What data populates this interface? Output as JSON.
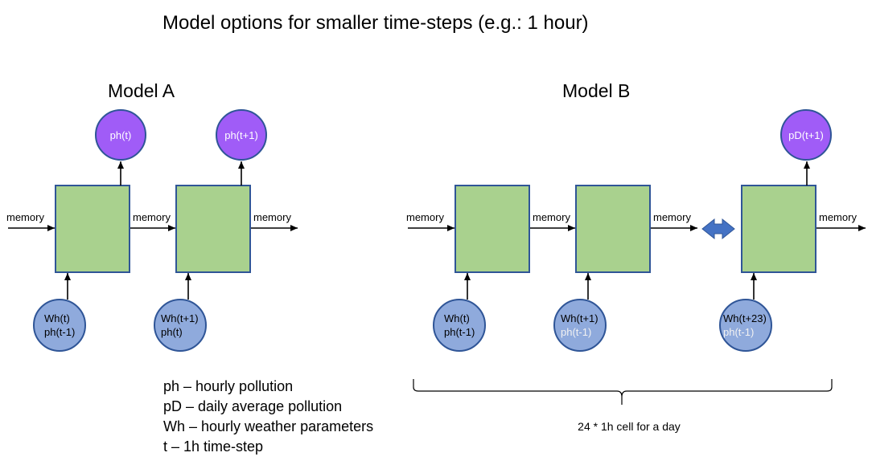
{
  "title": "Model options for smaller time-steps (e.g.: 1 hour)",
  "colors": {
    "cell_fill": "#a9d18e",
    "cell_stroke": "#2f5597",
    "output_fill": "#a05cf7",
    "input_fill": "#8faadc",
    "node_stroke": "#2f5597",
    "arrow": "#000000",
    "double_arrow": "#4472c4",
    "muted_text": "#f2f2f2"
  },
  "model_a": {
    "title": "Model A",
    "outputs": [
      "ph(t)",
      "ph(t+1)"
    ],
    "inputs": [
      {
        "line1": "Wh(t)",
        "line2": "ph(t-1)"
      },
      {
        "line1": "Wh(t+1)",
        "line2": "ph(t)"
      }
    ],
    "memory_labels": [
      "memory",
      "memory",
      "memory"
    ]
  },
  "model_b": {
    "title": "Model B",
    "output": "pD(t+1)",
    "inputs": [
      {
        "line1": "Wh(t)",
        "line2": "ph(t-1)"
      },
      {
        "line1": "Wh(t+1)",
        "line2": "ph(t-1)"
      },
      {
        "line1": "Wh(t+23)",
        "line2": "ph(t-1)"
      }
    ],
    "memory_labels": [
      "memory",
      "memory",
      "memory",
      "memory"
    ],
    "brace_label": "24 * 1h cell for a day"
  },
  "legend": [
    "ph – hourly pollution",
    "pD – daily average pollution",
    "Wh – hourly weather parameters",
    "t – 1h time-step"
  ]
}
